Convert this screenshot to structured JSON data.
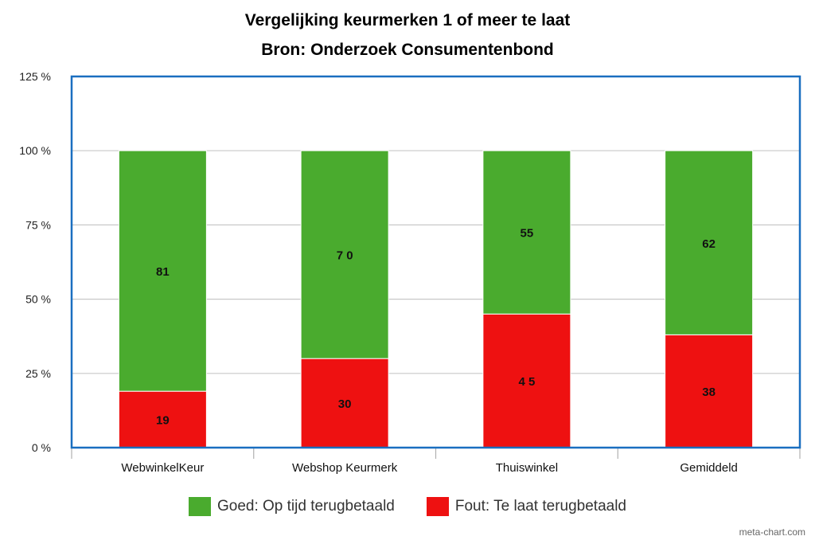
{
  "chart_data": {
    "type": "bar",
    "stacked": true,
    "title": "Vergelijking keurmerken 1 of meer te laat",
    "subtitle": "Bron: Onderzoek Consumentenbond",
    "categories": [
      "WebwinkelKeur",
      "Webshop Keurmerk",
      "Thuiswinkel",
      "Gemiddeld"
    ],
    "series": [
      {
        "name": "Fout: Te laat terugbetaald",
        "color": "#ee1111",
        "values": [
          19,
          30,
          45,
          38
        ],
        "labels": [
          "19",
          "30",
          "4 5",
          "38"
        ]
      },
      {
        "name": "Goed: Op tijd terugbetaald",
        "color": "#4aab2e",
        "values": [
          81,
          70,
          55,
          62
        ],
        "labels": [
          "81",
          "7 0",
          "55",
          "62"
        ]
      }
    ],
    "y_ticks": [
      "0 %",
      "25 %",
      "50 %",
      "75 %",
      "100 %",
      "125 %"
    ],
    "ylim": [
      0,
      125
    ],
    "grid": true,
    "legend_position": "bottom",
    "plot_border_color": "#1a6fc0"
  },
  "watermark": "meta-chart.com"
}
